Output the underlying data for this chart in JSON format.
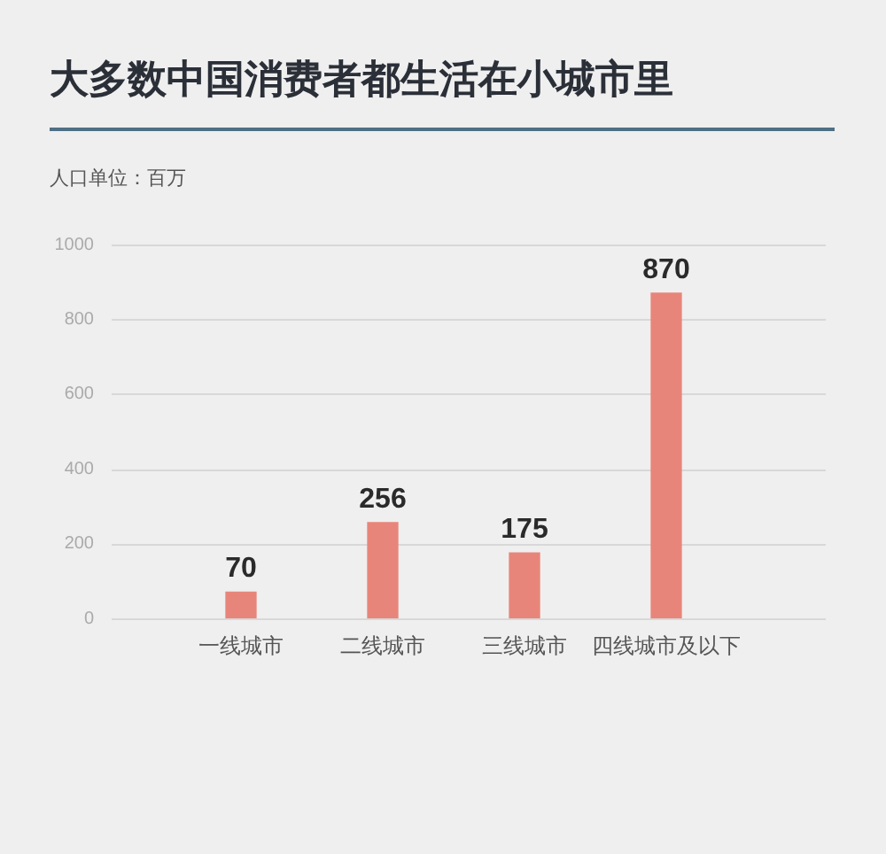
{
  "chart_data": {
    "type": "bar",
    "title": "大多数中国消费者都生活在小城市里",
    "ylabel": "人口单位：百万",
    "categories": [
      "一线城市",
      "二线城市",
      "三线城市",
      "四线城市及以下"
    ],
    "values": [
      70,
      256,
      175,
      870
    ],
    "color": "#e8857a",
    "ylim": [
      0,
      1000
    ],
    "yticks": [
      0,
      200,
      400,
      600,
      800,
      1000
    ],
    "grid": "y",
    "data_labels": true,
    "legend": false
  }
}
